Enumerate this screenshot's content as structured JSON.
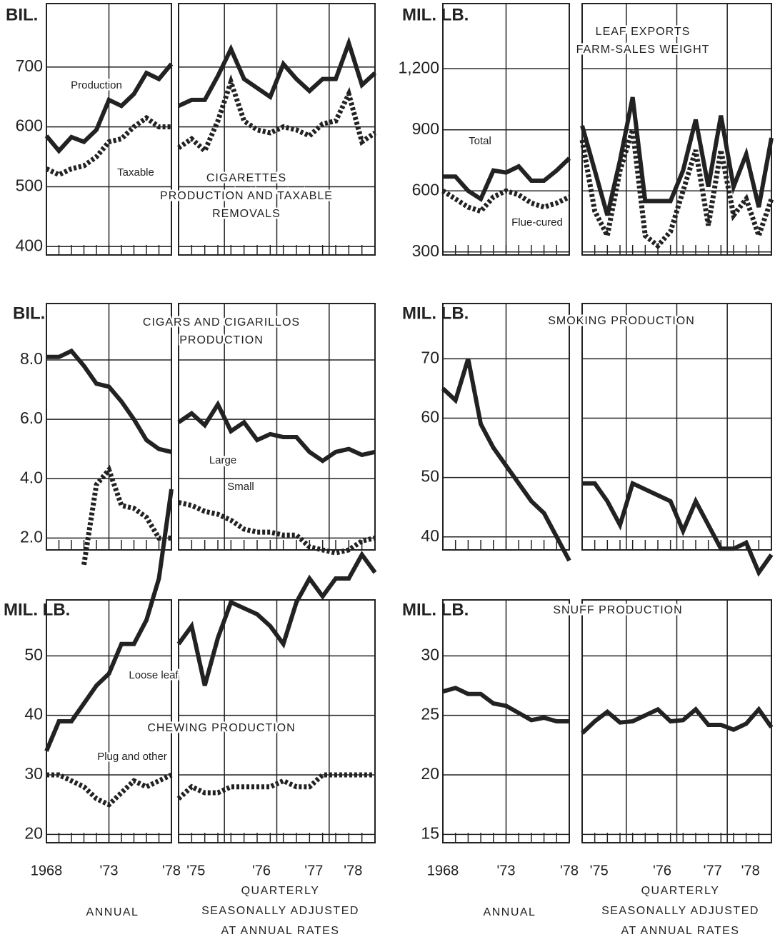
{
  "chart_data": [
    {
      "type": "line",
      "y_unit": "BIL.",
      "title": [
        "CIGARETTES",
        "PRODUCTION AND TAXABLE",
        "REMOVALS"
      ],
      "ylim": [
        386,
        806
      ],
      "yticks": [
        400,
        500,
        600,
        700
      ],
      "series": [
        {
          "name": "Production",
          "color": "#222",
          "style": "solid",
          "values": [
            585,
            560,
            583,
            575,
            595,
            645,
            635,
            655,
            690,
            680,
            705
          ],
          "quarterly_values": [
            635,
            645,
            645,
            685,
            730,
            680,
            665,
            650,
            705,
            680,
            660,
            680,
            680,
            740,
            670,
            690
          ]
        },
        {
          "name": "Taxable",
          "color": "#222",
          "style": "dashed",
          "values": [
            530,
            520,
            530,
            535,
            550,
            575,
            580,
            600,
            615,
            600,
            600
          ],
          "quarterly_values": [
            565,
            580,
            560,
            610,
            675,
            610,
            595,
            590,
            600,
            595,
            585,
            605,
            610,
            655,
            575,
            590
          ]
        }
      ]
    },
    {
      "type": "line",
      "y_unit": "MIL. LB.",
      "title": [
        "LEAF EXPORTS",
        "FARM-SALES WEIGHT"
      ],
      "ylim": [
        285,
        1520
      ],
      "yticks": [
        300,
        600,
        900,
        {
          "value": 1200,
          "label": "1,200"
        }
      ],
      "series": [
        {
          "name": "Total",
          "color": "#222",
          "style": "solid",
          "values": [
            670,
            670,
            600,
            560,
            700,
            690,
            720,
            650,
            650,
            700,
            760
          ],
          "quarterly_values": [
            920,
            700,
            480,
            750,
            1060,
            550,
            550,
            550,
            700,
            950,
            620,
            970,
            620,
            780,
            520,
            860
          ]
        },
        {
          "name": "Flue-cured",
          "color": "#222",
          "style": "dashed",
          "values": [
            600,
            560,
            520,
            500,
            570,
            600,
            580,
            540,
            520,
            540,
            570
          ],
          "quarterly_values": [
            850,
            500,
            380,
            700,
            900,
            380,
            330,
            400,
            600,
            800,
            430,
            800,
            480,
            560,
            380,
            560
          ]
        }
      ]
    },
    {
      "type": "line",
      "y_unit": "BIL.",
      "title": [
        "CIGARS AND CIGARILLOS",
        "PRODUCTION"
      ],
      "ylim": [
        1.6,
        9.9
      ],
      "yticks": [
        {
          "value": 2,
          "label": "2.0"
        },
        {
          "value": 4,
          "label": "4.0"
        },
        {
          "value": 6,
          "label": "6.0"
        },
        {
          "value": 8,
          "label": "8.0"
        }
      ],
      "series": [
        {
          "name": "Large",
          "color": "#222",
          "style": "solid",
          "values": [
            8.1,
            8.1,
            8.3,
            7.8,
            7.2,
            7.1,
            6.6,
            6.0,
            5.3,
            5.0,
            4.9
          ],
          "quarterly_values": [
            5.9,
            6.2,
            5.8,
            6.5,
            5.6,
            5.9,
            5.3,
            5.5,
            5.4,
            5.4,
            4.9,
            4.6,
            4.9,
            5.0,
            4.8,
            4.9
          ]
        },
        {
          "name": "Small",
          "color": "#222",
          "style": "dashed",
          "values": [
            null,
            null,
            null,
            1.1,
            3.8,
            4.3,
            3.1,
            3.0,
            2.7,
            2.0,
            2.0
          ],
          "quarterly_values": [
            3.2,
            3.1,
            2.9,
            2.8,
            2.6,
            2.3,
            2.2,
            2.2,
            2.1,
            2.1,
            1.7,
            1.6,
            1.5,
            1.6,
            1.9,
            2.0
          ]
        }
      ]
    },
    {
      "type": "line",
      "y_unit": "MIL. LB.",
      "title": [
        "SMOKING PRODUCTION"
      ],
      "ylim": [
        37.8,
        79.3
      ],
      "yticks": [
        40,
        50,
        60,
        70
      ],
      "series": [
        {
          "color": "#222",
          "style": "solid",
          "values": [
            65,
            63,
            70,
            59,
            55,
            52,
            49,
            46,
            44,
            40,
            36
          ],
          "quarterly_values": [
            49,
            49,
            46,
            42,
            49,
            48,
            47,
            46,
            41,
            46,
            42,
            38,
            38,
            39,
            34,
            37
          ]
        }
      ]
    },
    {
      "type": "line",
      "y_unit": "MIL. LB.",
      "title": [
        "CHEWING PRODUCTION"
      ],
      "ylim": [
        18.6,
        59.4
      ],
      "yticks": [
        20,
        30,
        40,
        50
      ],
      "categories": [
        "1968",
        null,
        null,
        null,
        null,
        "'73",
        null,
        null,
        null,
        null,
        "'78"
      ],
      "quarterly_categories": [
        null,
        "'75",
        null,
        null,
        null,
        null,
        "'76",
        null,
        null,
        null,
        "'77",
        null,
        null,
        "'78",
        null,
        null
      ],
      "annual_label": "ANNUAL",
      "quarterly_label": [
        "QUARTERLY",
        "SEASONALLY ADJUSTED",
        "AT ANNUAL RATES"
      ],
      "series": [
        {
          "name": "Loose leaf",
          "color": "#222",
          "style": "solid",
          "values": [
            34,
            39,
            39,
            42,
            45,
            47,
            52,
            52,
            56,
            63,
            78
          ],
          "quarterly_values": [
            52,
            55,
            45,
            53,
            59,
            58,
            57,
            55,
            52,
            59,
            63,
            60,
            63,
            63,
            67,
            64
          ]
        },
        {
          "name": "Plug and other",
          "color": "#222",
          "style": "dashed",
          "values": [
            30,
            30,
            29,
            28,
            26,
            25,
            27,
            29,
            28,
            29,
            30
          ],
          "quarterly_values": [
            26,
            28,
            27,
            27,
            28,
            28,
            28,
            28,
            29,
            28,
            28,
            30,
            30,
            30,
            30,
            30
          ]
        }
      ]
    },
    {
      "type": "line",
      "y_unit": "MIL. LB.",
      "title": [
        "SNUFF PRODUCTION"
      ],
      "ylim": [
        14.3,
        34.7
      ],
      "yticks": [
        15,
        20,
        25,
        30
      ],
      "categories": [
        "1968",
        null,
        null,
        null,
        null,
        "'73",
        null,
        null,
        null,
        null,
        "'78"
      ],
      "quarterly_categories": [
        null,
        "'75",
        null,
        null,
        null,
        null,
        "'76",
        null,
        null,
        null,
        "'77",
        null,
        null,
        "'78",
        null,
        null
      ],
      "annual_label": "ANNUAL",
      "quarterly_label": [
        "QUARTERLY",
        "SEASONALLY ADJUSTED",
        "AT ANNUAL RATES"
      ],
      "series": [
        {
          "color": "#222",
          "style": "solid",
          "values": [
            27.0,
            27.3,
            26.8,
            26.8,
            26.0,
            25.8,
            25.2,
            24.6,
            24.8,
            24.5,
            24.5
          ],
          "quarterly_values": [
            23.5,
            24.5,
            25.3,
            24.4,
            24.5,
            25.0,
            25.5,
            24.5,
            24.6,
            25.5,
            24.2,
            24.2,
            23.8,
            24.3,
            25.5,
            24.0
          ]
        }
      ]
    }
  ]
}
